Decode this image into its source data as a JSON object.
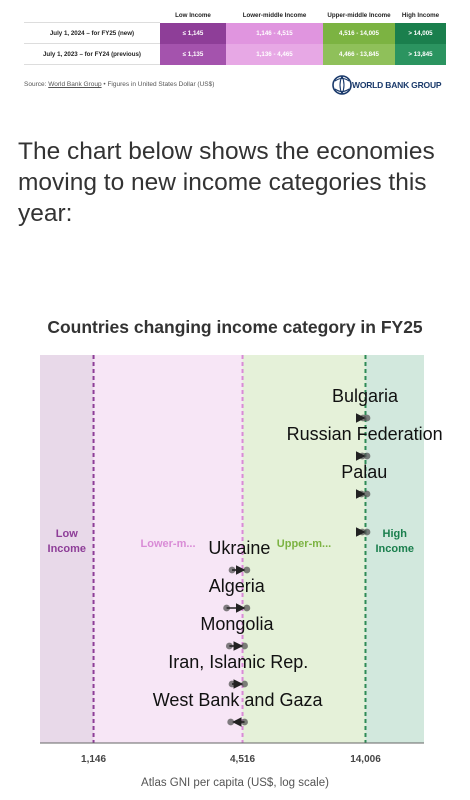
{
  "thresholds": {
    "headers": [
      "",
      "Low Income",
      "Lower-middle Income",
      "Upper-middle Income",
      "High Income"
    ],
    "rows": [
      {
        "label": "July 1, 2024 – for FY25 (new)",
        "low": "≤ 1,145",
        "lower_middle": "1,146 - 4,515",
        "upper_middle": "4,516 - 14,005",
        "high": "> 14,005"
      },
      {
        "label": "July 1, 2023 – for FY24 (previous)",
        "low": "≤ 1,135",
        "lower_middle": "1,136 - 4,465",
        "upper_middle": "4,466 - 13,845",
        "high": "> 13,845"
      }
    ],
    "colors": {
      "low": "#8e3e98",
      "lower_middle": "#e095df",
      "upper_middle": "#7cb342",
      "high": "#1a7f4d"
    }
  },
  "source": {
    "prefix": "Source: ",
    "link": "World Bank Group",
    "suffix": " • Figures in United States Dollar (US$)"
  },
  "logo": {
    "text": "WORLD BANK GROUP",
    "color": "#1a3a6b"
  },
  "intro": "The chart below shows the economies moving to new income categories this year:",
  "chart_data": {
    "type": "scatter",
    "title": "Countries changing income category in FY25",
    "xlabel": "Atlas GNI per capita (US$, log scale)",
    "xscale": "log",
    "xlim": [
      700,
      24000
    ],
    "xticks": [
      {
        "value": 1146,
        "label": "1,146"
      },
      {
        "value": 4516,
        "label": "4,516"
      },
      {
        "value": 14006,
        "label": "14,006"
      }
    ],
    "bands": [
      {
        "name": "Low Income",
        "from": 700,
        "to": 1146,
        "color": "#e8d9e9",
        "label_color": "#8e3e98"
      },
      {
        "name": "Lower-m...",
        "from": 1146,
        "to": 4516,
        "color": "#f7e6f6",
        "label_color": "#d98bd6"
      },
      {
        "name": "Upper-m...",
        "from": 4516,
        "to": 14006,
        "color": "#e5f1d9",
        "label_color": "#7cb342"
      },
      {
        "name": "High Income",
        "from": 14006,
        "to": 24000,
        "color": "#d2e8dd",
        "label_color": "#1a7f4d"
      }
    ],
    "threshold_lines": [
      {
        "value": 1146,
        "color": "#8e3e98"
      },
      {
        "value": 4516,
        "color": "#d98bd6"
      },
      {
        "value": 14006,
        "color": "#2e8b57"
      }
    ],
    "countries": [
      {
        "name": "Bulgaria",
        "from": 13700,
        "to": 14200
      },
      {
        "name": "Russian Federation",
        "from": 13600,
        "to": 14200
      },
      {
        "name": "Palau",
        "from": 13500,
        "to": 14200
      },
      {
        "name": "",
        "from": 13600,
        "to": 14200
      },
      {
        "name": "Ukraine",
        "from": 4100,
        "to": 4700
      },
      {
        "name": "Algeria",
        "from": 3900,
        "to": 4700
      },
      {
        "name": "Mongolia",
        "from": 4000,
        "to": 4600
      },
      {
        "name": "Iran, Islamic Rep.",
        "from": 4100,
        "to": 4600
      },
      {
        "name": "West Bank and Gaza",
        "from": 4600,
        "to": 4050
      }
    ]
  }
}
